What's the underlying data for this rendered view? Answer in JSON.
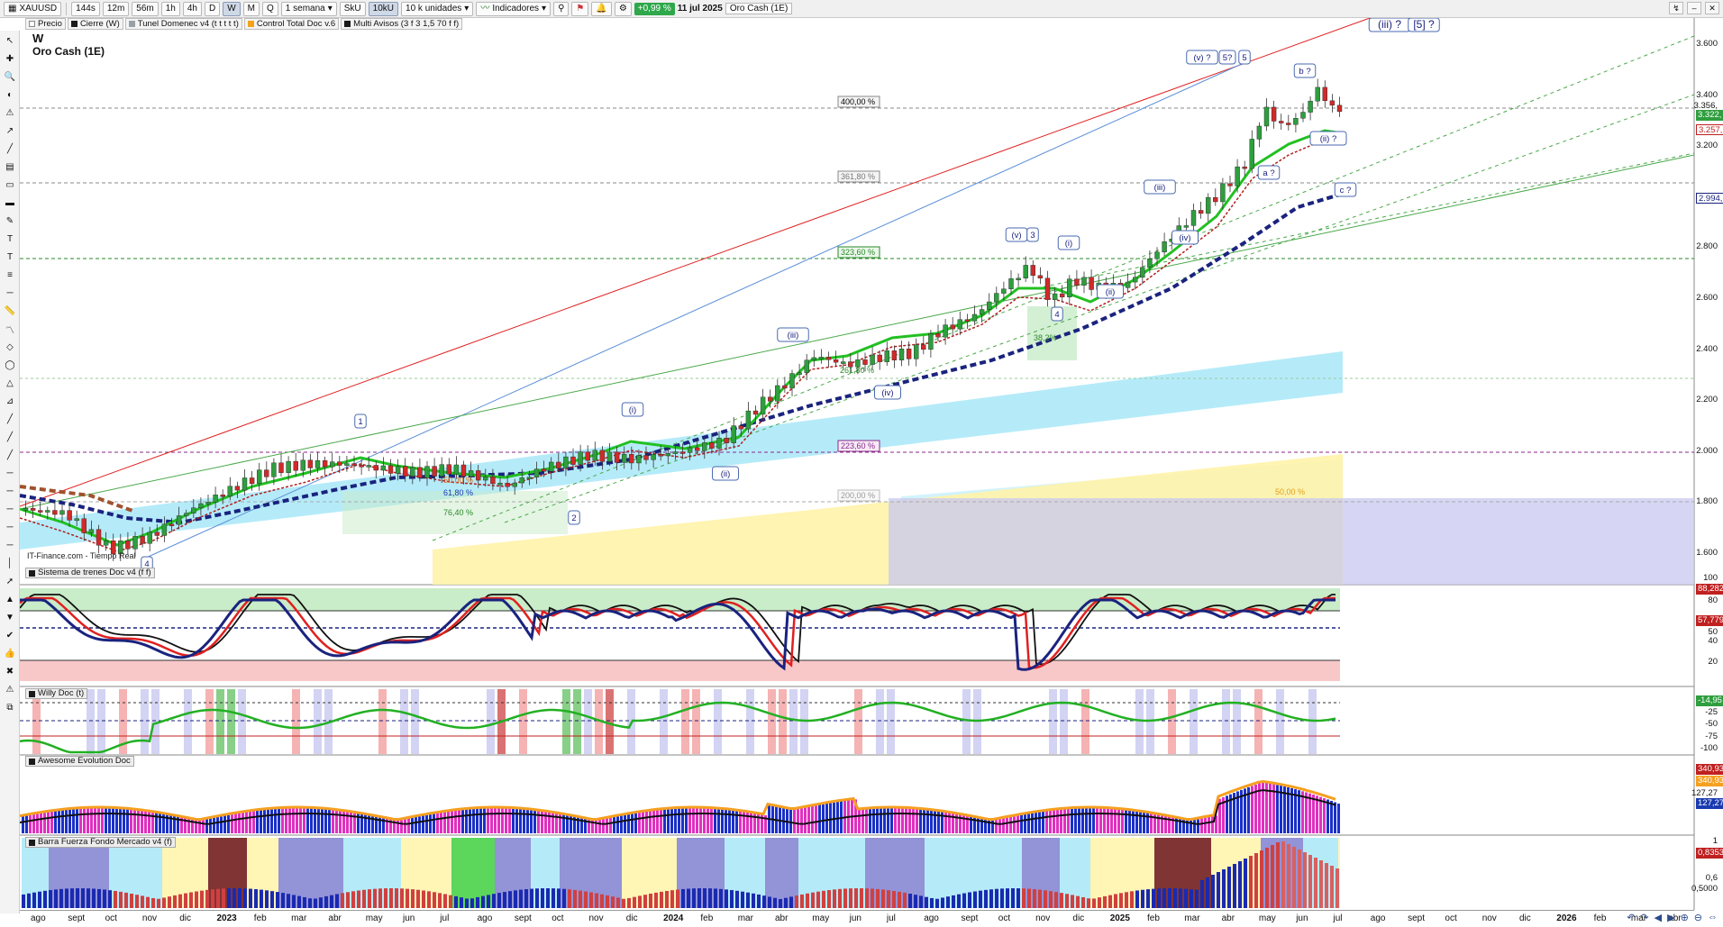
{
  "toolbar": {
    "symbol": "XAUUSD",
    "intervals": [
      "144s",
      "12m",
      "56m",
      "1h",
      "4h",
      "D",
      "W",
      "M",
      "Q"
    ],
    "active_interval": "W",
    "range": "1 semana",
    "sku": "SkU",
    "ticks": "10kU",
    "units": "10 k unidades",
    "indicators_label": "Indicadores",
    "change": "+0,99 %",
    "date": "11 jul 2025",
    "instrument_name": "Oro Cash (1E)"
  },
  "chips": [
    {
      "label": "Precio",
      "color": "#ffffff"
    },
    {
      "label": "Cierre (W)",
      "color": "#1a1a1a"
    },
    {
      "label": "Tunel Domenec v4 (t t t t t)",
      "color": "#9aa0a8"
    },
    {
      "label": "Control Total Doc v.6",
      "color": "#f4a21a"
    },
    {
      "label": "Multi Avisos (3 f 3 1,5 70 f f)",
      "color": "#1a1a1a"
    }
  ],
  "chart": {
    "title": "W",
    "subtitle": "Oro Cash (1E)",
    "watermark": "IT-Finance.com - Tiempo Real",
    "price_labels": [
      "3.600",
      "3.400",
      "3.356,",
      "3.322,",
      "3.257,",
      "3.200",
      "2.994,",
      "2.800",
      "2.600",
      "2.400",
      "2.200",
      "2.000",
      "1.800",
      "1.600"
    ],
    "fib_labels": [
      "400,00 %",
      "361,80 %",
      "323,60 %",
      "223,60 %",
      "200,00 %",
      "50,00 %",
      "61,80 %",
      "76,40 %",
      "261,80 %",
      "38,2%",
      "50,00 %"
    ],
    "wave_labels": [
      "1",
      "2",
      "4",
      "(i)",
      "(ii)",
      "(iii)",
      "(iv)",
      "(v)",
      "3",
      "(i)",
      "4",
      "(ii)",
      "(iii)",
      "(iv)",
      "(v) ?",
      "5?",
      "5",
      "b ?",
      "(ii) ?",
      "a ?",
      "c ?",
      "(iii) ?",
      "[5] ?"
    ]
  },
  "panes": {
    "trend": {
      "title": "Sistema de trenes Doc v4 (f f)",
      "labels": [
        "100",
        "88,282",
        "80",
        "57,779",
        "50",
        "40",
        "20"
      ]
    },
    "willy": {
      "title": "Willy Doc (t)",
      "labels": [
        "-14,95",
        "-25",
        "-50",
        "-75",
        "-100"
      ]
    },
    "awesome": {
      "title": "Awesome Evolution Doc",
      "labels": [
        "340,93",
        "340,93",
        "127,27",
        "127,27"
      ]
    },
    "barra": {
      "title": "Barra Fuerza Fondo Mercado v4 (f)",
      "labels": [
        "1",
        "0,8353",
        "0,6",
        "0,5000"
      ]
    }
  },
  "time_axis": [
    "ago",
    "sept",
    "oct",
    "nov",
    "dic",
    "2023",
    "feb",
    "mar",
    "abr",
    "may",
    "jun",
    "jul",
    "ago",
    "sept",
    "oct",
    "nov",
    "dic",
    "2024",
    "feb",
    "mar",
    "abr",
    "may",
    "jun",
    "jul",
    "ago",
    "sept",
    "oct",
    "nov",
    "dic",
    "2025",
    "feb",
    "mar",
    "abr",
    "may",
    "jun",
    "jul",
    "ago",
    "sept",
    "oct",
    "nov",
    "dic",
    "2026",
    "feb",
    "mar",
    "abr"
  ],
  "colors": {
    "up": "#2e9e3e",
    "down": "#d02a2a",
    "trend_green": "#22c022",
    "trend_blue": "#1a237e",
    "band_cyan": "#a8e8f8",
    "band_yellow": "#fff3a8",
    "band_lavender": "#c8c8f0"
  }
}
